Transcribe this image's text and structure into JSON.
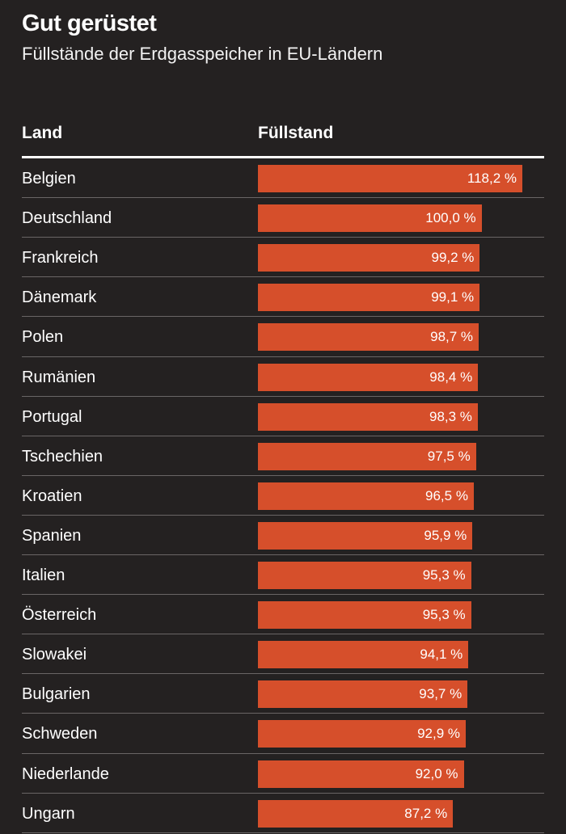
{
  "chart_data": {
    "type": "bar",
    "orientation": "horizontal",
    "title": "Gut gerüstet",
    "subtitle": "Füllstände der Erdgasspeicher in EU-Ländern",
    "column_headers": {
      "label": "Land",
      "value": "Füllstand"
    },
    "unit": "%",
    "bar_color": "#d64f2b",
    "background_color": "#242121",
    "xlim": [
      0,
      118.2
    ],
    "categories": [
      "Belgien",
      "Deutschland",
      "Frankreich",
      "Dänemark",
      "Polen",
      "Rumänien",
      "Portugal",
      "Tschechien",
      "Kroatien",
      "Spanien",
      "Italien",
      "Österreich",
      "Slowakei",
      "Bulgarien",
      "Schweden",
      "Niederlande",
      "Ungarn"
    ],
    "values": [
      118.2,
      100.0,
      99.2,
      99.1,
      98.7,
      98.4,
      98.3,
      97.5,
      96.5,
      95.9,
      95.3,
      95.3,
      94.1,
      93.7,
      92.9,
      92.0,
      87.2
    ],
    "value_labels": [
      "118,2 %",
      "100,0 %",
      "99,2 %",
      "99,1 %",
      "98,7 %",
      "98,4 %",
      "98,3 %",
      "97,5 %",
      "96,5 %",
      "95,9 %",
      "95,3 %",
      "95,3 %",
      "94,1 %",
      "93,7 %",
      "92,9 %",
      "92,0 %",
      "87,2 %"
    ]
  }
}
